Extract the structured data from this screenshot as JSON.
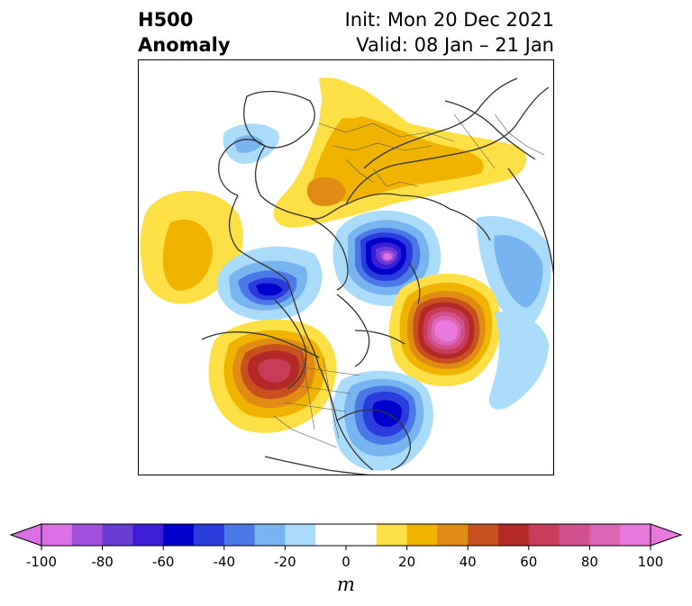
{
  "title": {
    "left_line1": "H500",
    "left_line2": "Anomaly",
    "right_line1": "Init: Mon 20 Dec 2021",
    "right_line2": "Valid: 08 Jan – 21 Jan"
  },
  "map": {
    "projection": "north-polar-stereographic",
    "field": "500 hPa geopotential height anomaly",
    "features": [
      {
        "name": "negative-center-arctic",
        "sign": "negative",
        "peak": -100
      },
      {
        "name": "positive-center-north-atlantic",
        "sign": "positive",
        "peak": 100
      },
      {
        "name": "positive-center-western-us-canada",
        "sign": "positive",
        "peak": 70
      },
      {
        "name": "negative-center-eastern-us",
        "sign": "negative",
        "peak": -60
      },
      {
        "name": "negative-center-alaska",
        "sign": "negative",
        "peak": -60
      },
      {
        "name": "positive-belt-eurasia",
        "sign": "positive",
        "peak": 40
      },
      {
        "name": "positive-center-north-pacific",
        "sign": "positive",
        "peak": 20
      }
    ]
  },
  "colorbar": {
    "units": "m",
    "min": -100,
    "max": 100,
    "step": 10,
    "extend": "both",
    "tick_labels": [
      "-100",
      "-80",
      "-60",
      "-40",
      "-20",
      "0",
      "20",
      "40",
      "60",
      "80",
      "100"
    ],
    "colors": [
      "#dc6ee6",
      "#a050dc",
      "#6a3cd6",
      "#3c1ed6",
      "#0000cd",
      "#2a3cdc",
      "#4a78e6",
      "#78b4f0",
      "#aadcfa",
      "#ffffff",
      "#ffffff",
      "#fde046",
      "#f0b400",
      "#e08c14",
      "#c8501e",
      "#b42828",
      "#c83c5a",
      "#d2508c",
      "#dc64b4",
      "#e878dc"
    ]
  }
}
